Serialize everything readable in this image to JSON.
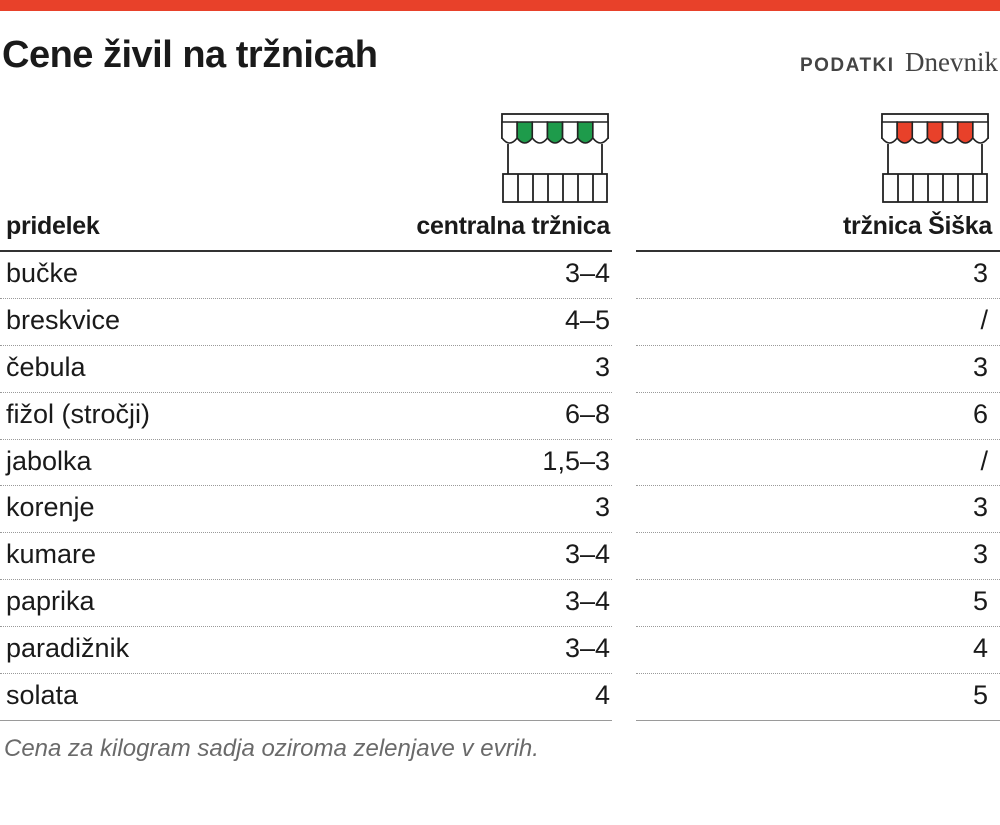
{
  "header": {
    "title": "Cene živil na tržnicah",
    "source_label": "PODATKI",
    "source_brand": "Dnevnik"
  },
  "colors": {
    "accent_bar": "#e8412a",
    "stall_central": "#1e9b4b",
    "stall_siska": "#e8412a"
  },
  "icons": [
    "market-stall-green-icon",
    "market-stall-red-icon"
  ],
  "chart_data": {
    "type": "table",
    "title": "Cene živil na tržnicah",
    "columns": [
      "pridelek",
      "centralna tržnica",
      "tržnica Šiška"
    ],
    "rows": [
      [
        "bučke",
        "3–4",
        "3"
      ],
      [
        "breskvice",
        "4–5",
        "/"
      ],
      [
        "čebula",
        "3",
        "3"
      ],
      [
        "fižol (stročji)",
        "6–8",
        "6"
      ],
      [
        "jabolka",
        "1,5–3",
        "/"
      ],
      [
        "korenje",
        "3",
        "3"
      ],
      [
        "kumare",
        "3–4",
        "3"
      ],
      [
        "paprika",
        "3–4",
        "5"
      ],
      [
        "paradižnik",
        "3–4",
        "4"
      ],
      [
        "solata",
        "4",
        "5"
      ]
    ],
    "note": "Cena za kilogram sadja oziroma zelenjave v evrih."
  }
}
